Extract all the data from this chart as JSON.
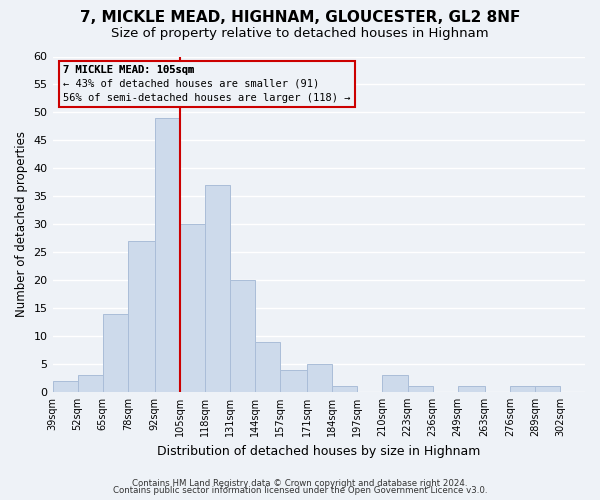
{
  "title": "7, MICKLE MEAD, HIGHNAM, GLOUCESTER, GL2 8NF",
  "subtitle": "Size of property relative to detached houses in Highnam",
  "xlabel": "Distribution of detached houses by size in Highnam",
  "ylabel": "Number of detached properties",
  "bar_color": "#cddaeb",
  "bar_edgecolor": "#aabdd8",
  "vline_x": 105,
  "vline_color": "#cc0000",
  "categories": [
    "39sqm",
    "52sqm",
    "65sqm",
    "78sqm",
    "92sqm",
    "105sqm",
    "118sqm",
    "131sqm",
    "144sqm",
    "157sqm",
    "171sqm",
    "184sqm",
    "197sqm",
    "210sqm",
    "223sqm",
    "236sqm",
    "249sqm",
    "263sqm",
    "276sqm",
    "289sqm",
    "302sqm"
  ],
  "bin_edges": [
    39,
    52,
    65,
    78,
    92,
    105,
    118,
    131,
    144,
    157,
    171,
    184,
    197,
    210,
    223,
    236,
    249,
    263,
    276,
    289,
    302
  ],
  "values": [
    2,
    3,
    14,
    27,
    49,
    30,
    37,
    20,
    9,
    4,
    5,
    1,
    0,
    3,
    1,
    0,
    1,
    0,
    1,
    1
  ],
  "ylim": [
    0,
    60
  ],
  "yticks": [
    0,
    5,
    10,
    15,
    20,
    25,
    30,
    35,
    40,
    45,
    50,
    55,
    60
  ],
  "annotation_title": "7 MICKLE MEAD: 105sqm",
  "annotation_line1": "← 43% of detached houses are smaller (91)",
  "annotation_line2": "56% of semi-detached houses are larger (118) →",
  "annotation_box_edgecolor": "#cc0000",
  "footer1": "Contains HM Land Registry data © Crown copyright and database right 2024.",
  "footer2": "Contains public sector information licensed under the Open Government Licence v3.0.",
  "background_color": "#eef2f7",
  "grid_color": "#ffffff",
  "title_fontsize": 11,
  "subtitle_fontsize": 9.5
}
